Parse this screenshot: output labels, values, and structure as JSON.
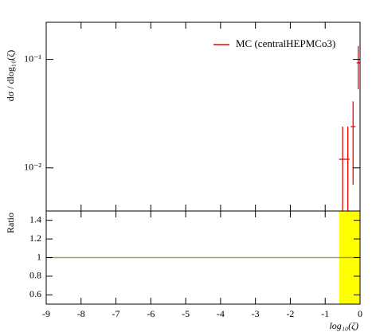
{
  "chart_data": [
    {
      "type": "errorbar",
      "ylabel": "dσ / dlog₁₀(ζ)",
      "log_y": true,
      "xlim": [
        -9,
        0
      ],
      "xticks": [
        -9,
        -8,
        -7,
        -6,
        -5,
        -4,
        -3,
        -2,
        -1,
        0
      ],
      "ylim": [
        0.004,
        0.22
      ],
      "yticks": [
        {
          "value": 0.01,
          "label": "10⁻²"
        },
        {
          "value": 0.1,
          "label": "10⁻¹"
        }
      ],
      "legend": "upper right",
      "series": [
        {
          "name": "MC (centralHEPMCo3)",
          "color": "#ee0000",
          "x": [
            -0.5,
            -0.35,
            -0.2,
            -0.05
          ],
          "xerr": [
            0.1,
            0.05,
            0.07,
            0.05
          ],
          "values": [
            0.012,
            0.012,
            0.024,
            0.093
          ],
          "yerr": [
            0.012,
            0.012,
            0.017,
            0.04
          ]
        }
      ]
    },
    {
      "type": "ratio",
      "ylabel": "Ratio",
      "xlabel": "log₁₀(ζ)",
      "xlim": [
        -9,
        0
      ],
      "xticks": [
        -9,
        -8,
        -7,
        -6,
        -5,
        -4,
        -3,
        -2,
        -1,
        0
      ],
      "ylim": [
        0.5,
        1.5
      ],
      "yticks": [
        0.6,
        0.8,
        1,
        1.2,
        1.4
      ],
      "reference": 1,
      "reference_color": "#a09a70",
      "band": {
        "color": "#ffff00",
        "x": [
          -0.6,
          0
        ],
        "low": [
          0,
          0
        ],
        "high": [
          2,
          2
        ]
      }
    }
  ]
}
